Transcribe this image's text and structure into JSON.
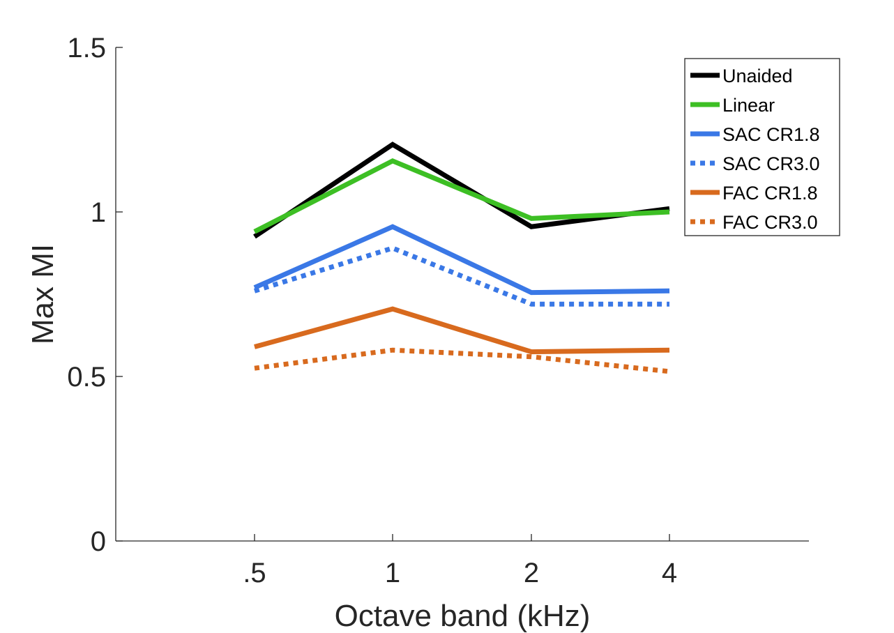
{
  "chart_data": {
    "type": "line",
    "title": "",
    "xlabel": "Octave band (kHz)",
    "ylabel": "Max MI",
    "categories": [
      ".5",
      "1",
      "2",
      "4"
    ],
    "ylim": [
      0,
      1.5
    ],
    "yticks": [
      "0",
      "0.5",
      "1",
      "1.5"
    ],
    "grid": false,
    "legend_position": "top-right",
    "series": [
      {
        "name": "Unaided",
        "color": "#000000",
        "style": "solid",
        "values": [
          0.925,
          1.205,
          0.955,
          1.01
        ]
      },
      {
        "name": "Linear",
        "color": "#3dbf24",
        "style": "solid",
        "values": [
          0.94,
          1.155,
          0.98,
          1.0
        ]
      },
      {
        "name": "SAC CR1.8",
        "color": "#3a78e6",
        "style": "solid",
        "values": [
          0.77,
          0.955,
          0.755,
          0.76
        ]
      },
      {
        "name": "SAC CR3.0",
        "color": "#3a78e6",
        "style": "dotted",
        "values": [
          0.76,
          0.89,
          0.72,
          0.72
        ]
      },
      {
        "name": "FAC CR1.8",
        "color": "#d86a1e",
        "style": "solid",
        "values": [
          0.59,
          0.705,
          0.575,
          0.58
        ]
      },
      {
        "name": "FAC CR3.0",
        "color": "#d86a1e",
        "style": "dotted",
        "values": [
          0.525,
          0.58,
          0.56,
          0.515
        ]
      }
    ]
  }
}
